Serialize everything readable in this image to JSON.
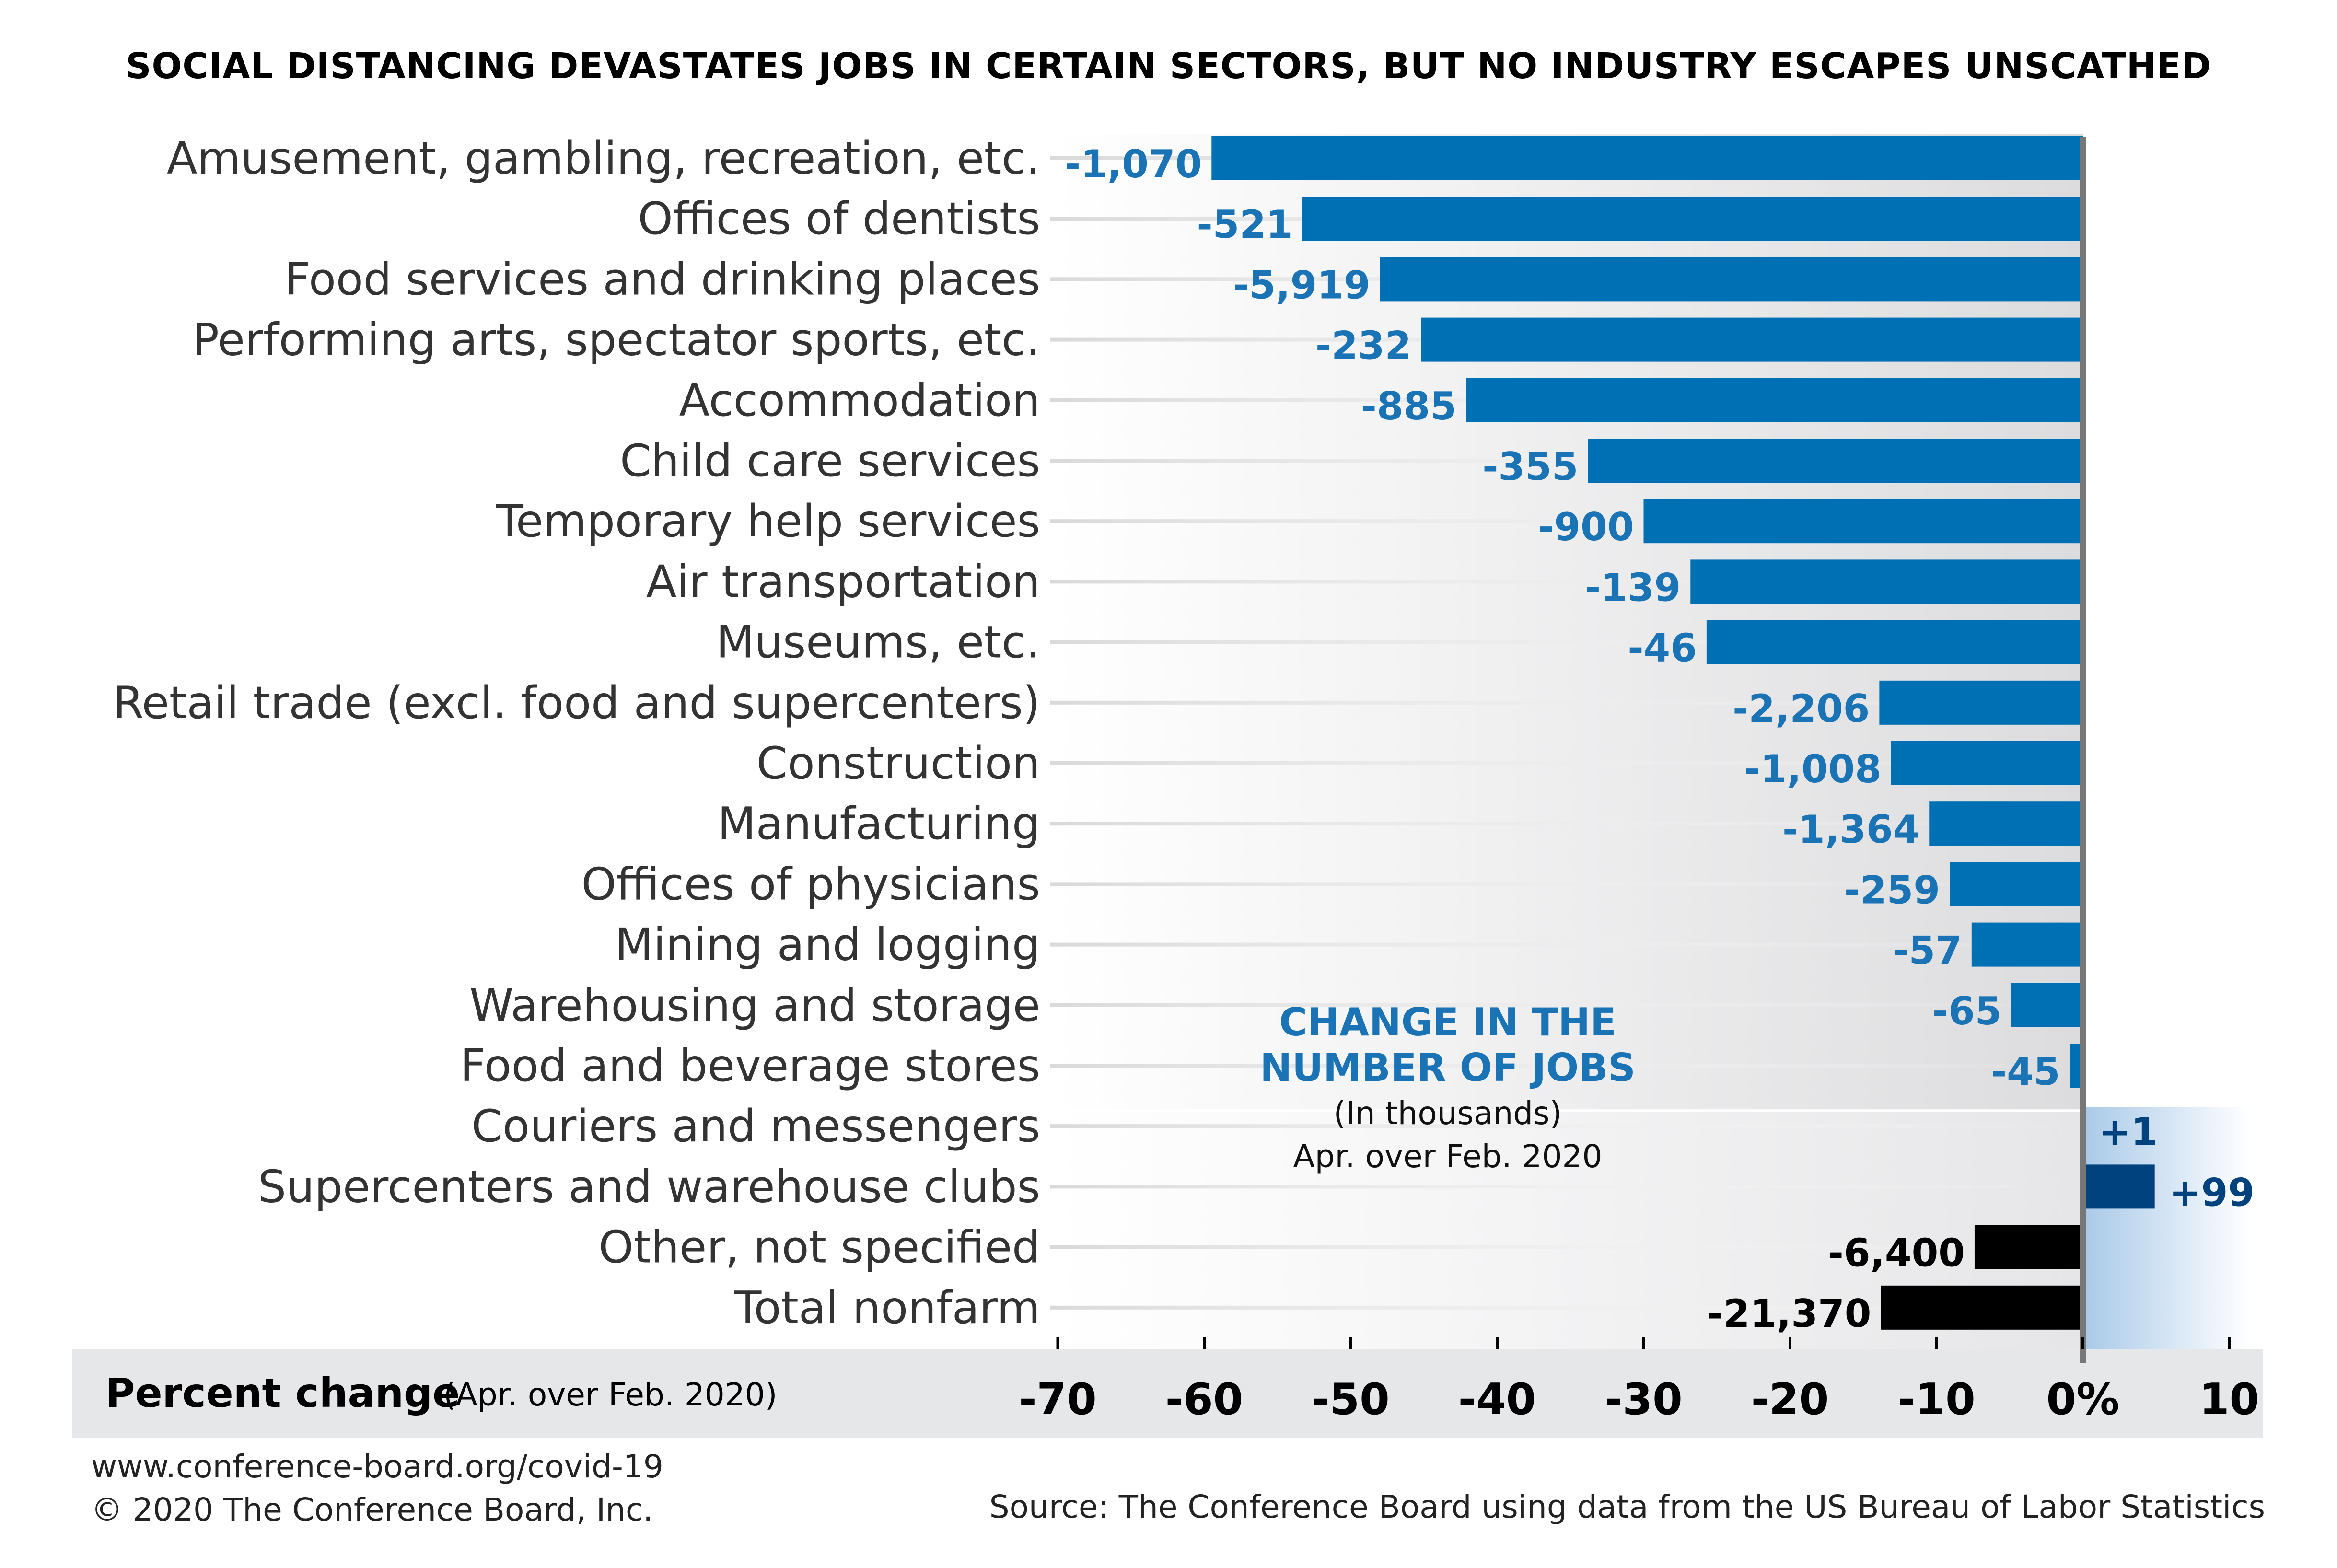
{
  "chart_data": {
    "type": "bar",
    "orientation": "horizontal",
    "title": "SOCIAL DISTANCING DEVASTATES JOBS IN CERTAIN SECTORS, BUT NO INDUSTRY ESCAPES UNSCATHED",
    "categories": [
      "Amusement, gambling, recreation, etc.",
      "Offices of dentists",
      "Food services and drinking places",
      "Performing arts, spectator sports, etc.",
      "Accommodation",
      "Child care services",
      "Temporary help services",
      "Air transportation",
      "Museums, etc.",
      "Retail trade (excl. food and supercenters)",
      "Construction",
      "Manufacturing",
      "Offices of physicians",
      "Mining and logging",
      "Warehousing and storage",
      "Food and beverage stores",
      "Couriers and messengers",
      "Supercenters and warehouse clubs",
      "Other, not specified",
      "Total nonfarm"
    ],
    "series": [
      {
        "values": [
          -59.5,
          -53.3,
          -48.0,
          -45.2,
          -42.1,
          -33.8,
          -30.0,
          -26.8,
          -25.7,
          -13.9,
          -13.1,
          -10.5,
          -9.1,
          -7.6,
          -4.9,
          -0.9,
          0.1,
          4.9,
          -7.4,
          -13.8
        ],
        "job_change_labels": [
          "-1,070",
          "-521",
          "-5,919",
          "-232",
          "-885",
          "-355",
          "-900",
          "-139",
          "-46",
          "-2,206",
          "-1,008",
          "-1,364",
          "-259",
          "-57",
          "-65",
          "-45",
          "+1",
          "+99",
          "-6,400",
          "-21,370"
        ]
      }
    ],
    "bar_colors": [
      "#0070b4",
      "#0070b4",
      "#0070b4",
      "#0070b4",
      "#0070b4",
      "#0070b4",
      "#0070b4",
      "#0070b4",
      "#0070b4",
      "#0070b4",
      "#0070b4",
      "#0070b4",
      "#0070b4",
      "#0070b4",
      "#0070b4",
      "#0070b4",
      "#00427e",
      "#00427e",
      "#000000",
      "#000000"
    ],
    "label_colors": [
      "#1a73b5",
      "#1a73b5",
      "#1a73b5",
      "#1a73b5",
      "#1a73b5",
      "#1a73b5",
      "#1a73b5",
      "#1a73b5",
      "#1a73b5",
      "#1a73b5",
      "#1a73b5",
      "#1a73b5",
      "#1a73b5",
      "#1a73b5",
      "#1a73b5",
      "#1a73b5",
      "#00427e",
      "#00427e",
      "#000000",
      "#000000"
    ],
    "xlim": [
      -70,
      10
    ],
    "xticks": [
      -70,
      -60,
      -50,
      -40,
      -30,
      -20,
      -10,
      0,
      10
    ],
    "xtick_labels": [
      "-70",
      "-60",
      "-50",
      "-40",
      "-30",
      "-20",
      "-10",
      "0%",
      "10"
    ],
    "xlabel": "Percent change",
    "xlabel_note": "(Apr. over Feb. 2020)",
    "annotation": {
      "heading_lines": [
        "CHANGE IN THE",
        "NUMBER OF JOBS"
      ],
      "sub_lines": [
        "(In thousands)",
        "Apr. over Feb. 2020"
      ]
    },
    "grid": false
  },
  "footer": {
    "url": "www.conference-board.org/covid-19",
    "copyright": "© 2020 The Conference Board, Inc.",
    "source": "Source: The Conference Board using data from the US Bureau of Labor Statistics"
  },
  "colors": {
    "positive_bar": "#00427e",
    "negative_bar": "#0070b4",
    "aggregate_bar": "#000000",
    "axis_band": "#e6e7e8",
    "zero_line": "#777777"
  }
}
